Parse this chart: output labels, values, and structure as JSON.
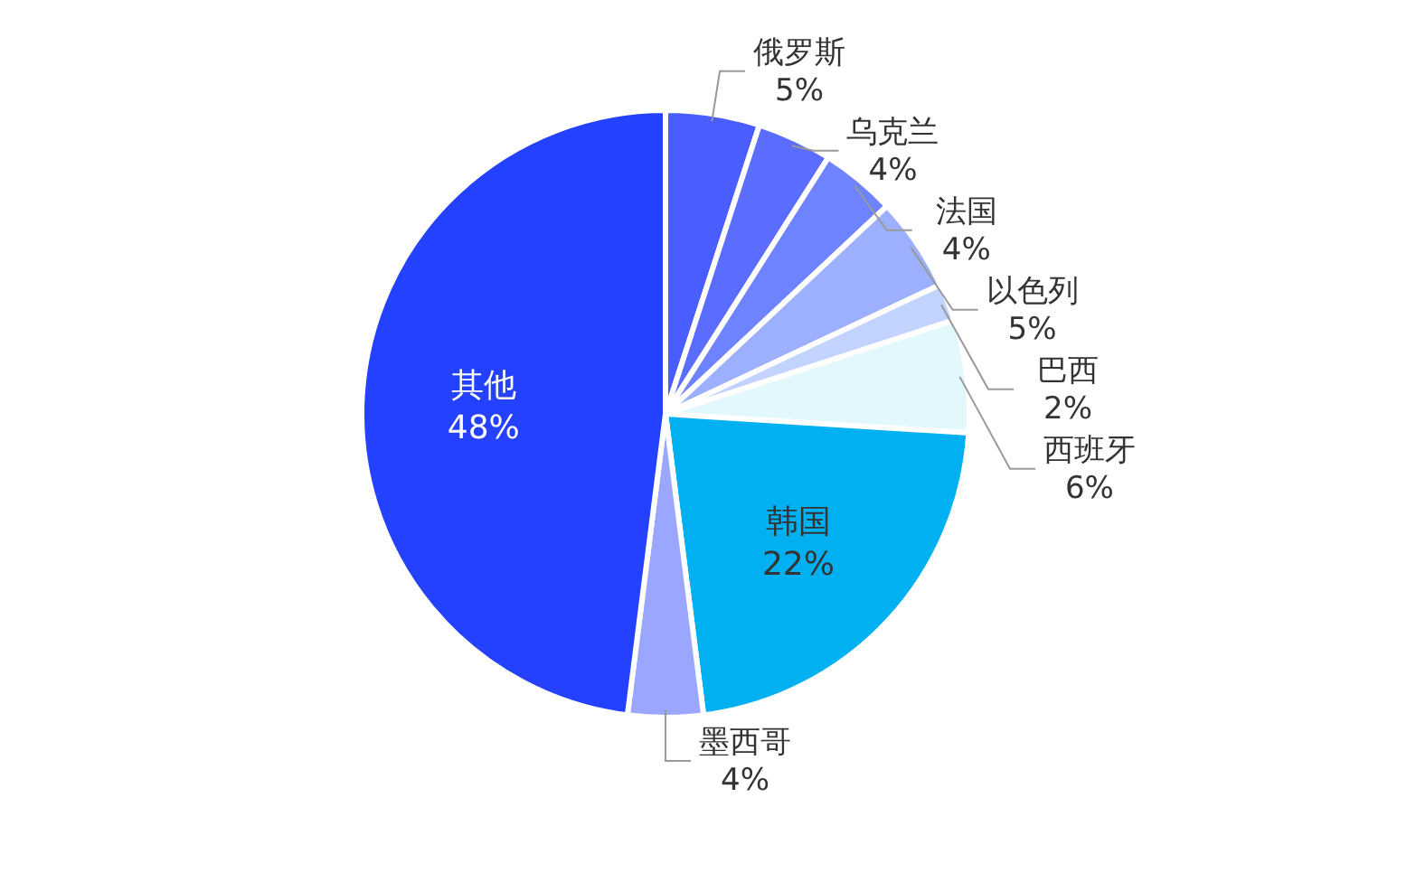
{
  "chart_data": {
    "type": "pie",
    "categories": [
      "俄罗斯",
      "乌克兰",
      "法国",
      "以色列",
      "巴西",
      "西班牙",
      "韩国",
      "墨西哥",
      "其他"
    ],
    "values": [
      5,
      4,
      4,
      5,
      2,
      6,
      22,
      4,
      48
    ],
    "value_labels": [
      "5%",
      "4%",
      "4%",
      "5%",
      "2%",
      "6%",
      "22%",
      "4%",
      "48%"
    ],
    "colors": [
      "#4a5dff",
      "#5b6dff",
      "#6e83ff",
      "#9cb0ff",
      "#c3d3ff",
      "#e2f8fc",
      "#00b0f0",
      "#9aa6ff",
      "#2341ff"
    ]
  }
}
